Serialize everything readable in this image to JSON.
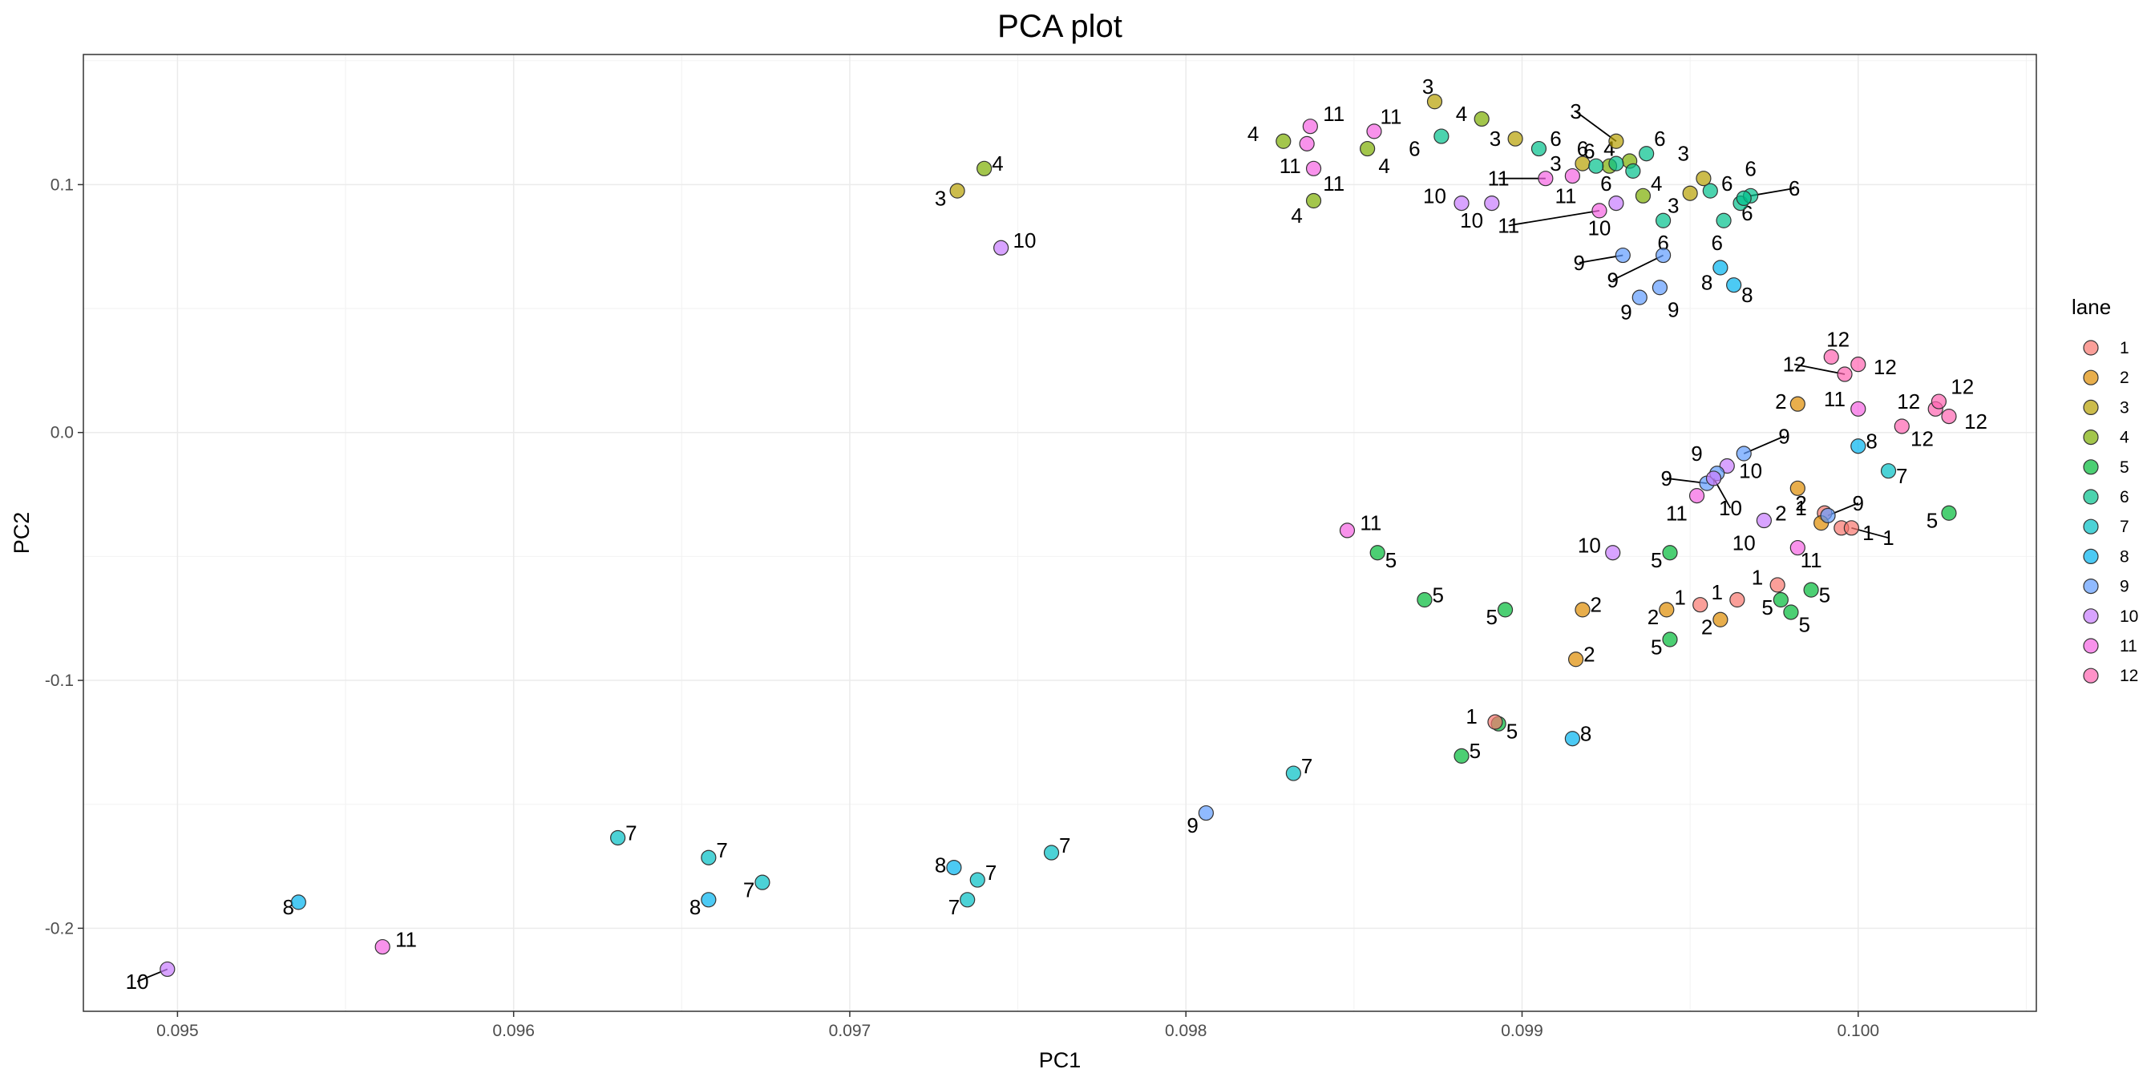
{
  "chart_data": {
    "type": "scatter",
    "title": "PCA plot",
    "xlabel": "PC1",
    "ylabel": "PC2",
    "xlim": [
      0.09472,
      0.10053
    ],
    "ylim": [
      -0.2335,
      0.1525
    ],
    "x_ticks": [
      0.095,
      0.096,
      0.097,
      0.098,
      0.099,
      0.1
    ],
    "x_tick_labels": [
      "0.095",
      "0.096",
      "0.097",
      "0.098",
      "0.099",
      "0.100"
    ],
    "y_ticks": [
      -0.2,
      -0.1,
      0.0,
      0.1
    ],
    "y_tick_labels": [
      "-0.2",
      "-0.1",
      "0.0",
      "0.1"
    ],
    "grid": true,
    "legend": {
      "title": "lane",
      "position": "right",
      "entries": [
        "1",
        "2",
        "3",
        "4",
        "5",
        "6",
        "7",
        "8",
        "9",
        "10",
        "11",
        "12"
      ]
    },
    "colors": {
      "1": "#F8766D",
      "2": "#DE8C00",
      "3": "#B79F00",
      "4": "#7CAE00",
      "5": "#00BA38",
      "6": "#00C08B",
      "7": "#00BFC4",
      "8": "#00B4F0",
      "9": "#619CFF",
      "10": "#C77CFF",
      "11": "#F564E3",
      "12": "#FF64B0"
    },
    "points": [
      {
        "x": 0.09497,
        "y": -0.2165,
        "lane": "10",
        "label": "10",
        "lx": 0.09488,
        "ly": -0.2215
      },
      {
        "x": 0.09536,
        "y": -0.1895,
        "lane": "8",
        "label": "8",
        "lx": 0.09533,
        "ly": -0.1915
      },
      {
        "x": 0.09561,
        "y": -0.2075,
        "lane": "11",
        "label": "11",
        "lx": 0.09568,
        "ly": -0.2045
      },
      {
        "x": 0.09631,
        "y": -0.1635,
        "lane": "7",
        "label": "7",
        "lx": 0.09635,
        "ly": -0.1615
      },
      {
        "x": 0.09658,
        "y": -0.1885,
        "lane": "8",
        "label": "8",
        "lx": 0.09654,
        "ly": -0.1915
      },
      {
        "x": 0.09658,
        "y": -0.1715,
        "lane": "7",
        "label": "7",
        "lx": 0.09662,
        "ly": -0.1685
      },
      {
        "x": 0.09674,
        "y": -0.1815,
        "lane": "7",
        "label": "7",
        "lx": 0.0967,
        "ly": -0.1845
      },
      {
        "x": 0.09731,
        "y": -0.1755,
        "lane": "8",
        "label": "8",
        "lx": 0.09727,
        "ly": -0.1745
      },
      {
        "x": 0.09735,
        "y": -0.1885,
        "lane": "7",
        "label": "7",
        "lx": 0.09731,
        "ly": -0.1915
      },
      {
        "x": 0.09738,
        "y": -0.1805,
        "lane": "7",
        "label": "7",
        "lx": 0.09742,
        "ly": -0.1775
      },
      {
        "x": 0.0976,
        "y": -0.1695,
        "lane": "7",
        "label": "7",
        "lx": 0.09764,
        "ly": -0.1665
      },
      {
        "x": 0.09806,
        "y": -0.1535,
        "lane": "9",
        "label": "9",
        "lx": 0.09802,
        "ly": -0.1585
      },
      {
        "x": 0.09832,
        "y": -0.1375,
        "lane": "7",
        "label": "7",
        "lx": 0.09836,
        "ly": -0.1345
      },
      {
        "x": 0.09882,
        "y": -0.1305,
        "lane": "5",
        "label": "5",
        "lx": 0.09886,
        "ly": -0.1285
      },
      {
        "x": 0.09893,
        "y": -0.1175,
        "lane": "5",
        "label": "5",
        "lx": 0.09897,
        "ly": -0.1205
      },
      {
        "x": 0.09892,
        "y": -0.1168,
        "lane": "1",
        "label": "1",
        "lx": 0.09885,
        "ly": -0.1145
      },
      {
        "x": 0.09915,
        "y": -0.1235,
        "lane": "8",
        "label": "8",
        "lx": 0.09919,
        "ly": -0.1215
      },
      {
        "x": 0.09916,
        "y": -0.0915,
        "lane": "2",
        "label": "2",
        "lx": 0.0992,
        "ly": -0.0895
      },
      {
        "x": 0.09918,
        "y": -0.0715,
        "lane": "2",
        "label": "2",
        "lx": 0.09922,
        "ly": -0.0695
      },
      {
        "x": 0.09895,
        "y": -0.0715,
        "lane": "5",
        "label": "5",
        "lx": 0.09891,
        "ly": -0.0745
      },
      {
        "x": 0.09871,
        "y": -0.0675,
        "lane": "5",
        "label": "5",
        "lx": 0.09875,
        "ly": -0.0655
      },
      {
        "x": 0.09857,
        "y": -0.0485,
        "lane": "5",
        "label": "5",
        "lx": 0.09861,
        "ly": -0.0515
      },
      {
        "x": 0.09848,
        "y": -0.0395,
        "lane": "11",
        "label": "11",
        "lx": 0.09855,
        "ly": -0.0365
      },
      {
        "x": 0.09927,
        "y": -0.0485,
        "lane": "10",
        "label": "10",
        "lx": 0.0992,
        "ly": -0.0455
      },
      {
        "x": 0.09944,
        "y": -0.0485,
        "lane": "5",
        "label": "5",
        "lx": 0.0994,
        "ly": -0.0515
      },
      {
        "x": 0.09943,
        "y": -0.0715,
        "lane": "2",
        "label": "2",
        "lx": 0.09939,
        "ly": -0.0745
      },
      {
        "x": 0.09944,
        "y": -0.0835,
        "lane": "5",
        "label": "5",
        "lx": 0.0994,
        "ly": -0.0865
      },
      {
        "x": 0.09953,
        "y": -0.0695,
        "lane": "1",
        "label": "1",
        "lx": 0.09947,
        "ly": -0.0665
      },
      {
        "x": 0.09959,
        "y": -0.0755,
        "lane": "2",
        "label": "2",
        "lx": 0.09955,
        "ly": -0.0785
      },
      {
        "x": 0.09964,
        "y": -0.0675,
        "lane": "1",
        "label": "1",
        "lx": 0.09958,
        "ly": -0.0645
      },
      {
        "x": 0.09976,
        "y": -0.0615,
        "lane": "1",
        "label": "1",
        "lx": 0.0997,
        "ly": -0.0585
      },
      {
        "x": 0.09977,
        "y": -0.0675,
        "lane": "5",
        "label": "5",
        "lx": 0.09973,
        "ly": -0.0705
      },
      {
        "x": 0.0998,
        "y": -0.0725,
        "lane": "5",
        "label": "5",
        "lx": 0.09984,
        "ly": -0.0775
      },
      {
        "x": 0.09986,
        "y": -0.0635,
        "lane": "5",
        "label": "5",
        "lx": 0.0999,
        "ly": -0.0655
      },
      {
        "x": 0.09982,
        "y": -0.0465,
        "lane": "11",
        "label": "11",
        "lx": 0.09986,
        "ly": -0.0515
      },
      {
        "x": 0.09982,
        "y": -0.0225,
        "lane": "2",
        "label": "2",
        "lx": 0.09977,
        "ly": -0.0325
      },
      {
        "x": 0.09972,
        "y": -0.0355,
        "lane": "10",
        "label": "10",
        "lx": 0.09966,
        "ly": -0.0445
      },
      {
        "x": 0.0999,
        "y": -0.0325,
        "lane": "1",
        "label": "1",
        "lx": 0.09983,
        "ly": -0.0305
      },
      {
        "x": 0.09989,
        "y": -0.0365,
        "lane": "2",
        "label": "2",
        "lx": 0.09983,
        "ly": -0.0285
      },
      {
        "x": 0.09991,
        "y": -0.0335,
        "lane": "9",
        "label": "9",
        "lx": 0.1,
        "ly": -0.0285
      },
      {
        "x": 0.09995,
        "y": -0.0385,
        "lane": "1",
        "label": "1",
        "lx": 0.10003,
        "ly": -0.0405
      },
      {
        "x": 0.09998,
        "y": -0.0385,
        "lane": "1",
        "label": "1",
        "lx": 0.10009,
        "ly": -0.0425
      },
      {
        "x": 0.10027,
        "y": -0.0325,
        "lane": "5",
        "label": "5",
        "lx": 0.10022,
        "ly": -0.0355
      },
      {
        "x": 0.10009,
        "y": -0.0155,
        "lane": "7",
        "label": "7",
        "lx": 0.10013,
        "ly": -0.0175
      },
      {
        "x": 0.1,
        "y": -0.0055,
        "lane": "8",
        "label": "8",
        "lx": 0.10004,
        "ly": -0.0035
      },
      {
        "x": 0.09966,
        "y": -0.0085,
        "lane": "9",
        "label": "9",
        "lx": 0.09978,
        "ly": -0.0015
      },
      {
        "x": 0.09961,
        "y": -0.0135,
        "lane": "10",
        "label": "10",
        "lx": 0.09968,
        "ly": -0.0155
      },
      {
        "x": 0.09958,
        "y": -0.0165,
        "lane": "9",
        "label": "9",
        "lx": 0.09952,
        "ly": -0.0085
      },
      {
        "x": 0.09955,
        "y": -0.0205,
        "lane": "9",
        "label": "9",
        "lx": 0.09943,
        "ly": -0.0185
      },
      {
        "x": 0.09957,
        "y": -0.0185,
        "lane": "10",
        "label": "10",
        "lx": 0.09962,
        "ly": -0.0305
      },
      {
        "x": 0.09952,
        "y": -0.0255,
        "lane": "11",
        "label": "11",
        "lx": 0.09946,
        "ly": -0.0325
      },
      {
        "x": 0.09982,
        "y": 0.0115,
        "lane": "2",
        "label": "2",
        "lx": 0.09977,
        "ly": 0.0125
      },
      {
        "x": 0.1,
        "y": 0.0095,
        "lane": "11",
        "label": "11",
        "lx": 0.09993,
        "ly": 0.0135
      },
      {
        "x": 0.09992,
        "y": 0.0305,
        "lane": "12",
        "label": "12",
        "lx": 0.09994,
        "ly": 0.0375
      },
      {
        "x": 0.09996,
        "y": 0.0235,
        "lane": "12",
        "label": "12",
        "lx": 0.09981,
        "ly": 0.0275
      },
      {
        "x": 0.1,
        "y": 0.0275,
        "lane": "12",
        "label": "12",
        "lx": 0.10008,
        "ly": 0.0265
      },
      {
        "x": 0.10013,
        "y": 0.0025,
        "lane": "12",
        "label": "12",
        "lx": 0.10019,
        "ly": -0.0025
      },
      {
        "x": 0.10023,
        "y": 0.0095,
        "lane": "12",
        "label": "12",
        "lx": 0.10015,
        "ly": 0.0125
      },
      {
        "x": 0.10024,
        "y": 0.0125,
        "lane": "12",
        "label": "12",
        "lx": 0.10031,
        "ly": 0.0185
      },
      {
        "x": 0.10027,
        "y": 0.0065,
        "lane": "12",
        "label": "12",
        "lx": 0.10035,
        "ly": 0.0045
      },
      {
        "x": 0.09935,
        "y": 0.0545,
        "lane": "9",
        "label": "9",
        "lx": 0.09931,
        "ly": 0.0485
      },
      {
        "x": 0.09941,
        "y": 0.0585,
        "lane": "9",
        "label": "9",
        "lx": 0.09945,
        "ly": 0.0495
      },
      {
        "x": 0.0993,
        "y": 0.0715,
        "lane": "9",
        "label": "9",
        "lx": 0.09917,
        "ly": 0.0685
      },
      {
        "x": 0.09942,
        "y": 0.0715,
        "lane": "9",
        "label": "9",
        "lx": 0.09927,
        "ly": 0.0615
      },
      {
        "x": 0.09959,
        "y": 0.0665,
        "lane": "8",
        "label": "8",
        "lx": 0.09955,
        "ly": 0.0605
      },
      {
        "x": 0.09963,
        "y": 0.0595,
        "lane": "8",
        "label": "8",
        "lx": 0.09967,
        "ly": 0.0555
      },
      {
        "x": 0.0996,
        "y": 0.0855,
        "lane": "6",
        "label": "6",
        "lx": 0.09958,
        "ly": 0.0765
      },
      {
        "x": 0.09942,
        "y": 0.0855,
        "lane": "6",
        "label": "6",
        "lx": 0.09942,
        "ly": 0.0765
      },
      {
        "x": 0.09965,
        "y": 0.0925,
        "lane": "6",
        "label": "6",
        "lx": 0.09967,
        "ly": 0.0885
      },
      {
        "x": 0.09968,
        "y": 0.0955,
        "lane": "6",
        "label": "6",
        "lx": 0.09981,
        "ly": 0.0985
      },
      {
        "x": 0.09966,
        "y": 0.0945,
        "lane": "6",
        "label": "6",
        "lx": 0.09968,
        "ly": 0.1065
      },
      {
        "x": 0.09956,
        "y": 0.0975,
        "lane": "6",
        "label": "6",
        "lx": 0.09961,
        "ly": 0.1005
      },
      {
        "x": 0.09954,
        "y": 0.1025,
        "lane": "3",
        "label": "3",
        "lx": 0.09948,
        "ly": 0.1125
      },
      {
        "x": 0.0995,
        "y": 0.0965,
        "lane": "3",
        "label": "3",
        "lx": 0.09945,
        "ly": 0.0915
      },
      {
        "x": 0.09928,
        "y": 0.1175,
        "lane": "3",
        "label": "3",
        "lx": 0.09916,
        "ly": 0.1295
      },
      {
        "x": 0.09937,
        "y": 0.1125,
        "lane": "6",
        "label": "6",
        "lx": 0.09941,
        "ly": 0.1185
      },
      {
        "x": 0.09932,
        "y": 0.1095,
        "lane": "4",
        "label": "4",
        "lx": 0.09926,
        "ly": 0.1145
      },
      {
        "x": 0.09926,
        "y": 0.1075,
        "lane": "4",
        "label": "4",
        "lx": 0.09926,
        "ly": 0.1145
      },
      {
        "x": 0.09936,
        "y": 0.0955,
        "lane": "4",
        "label": "4",
        "lx": 0.0994,
        "ly": 0.1005
      },
      {
        "x": 0.09928,
        "y": 0.1085,
        "lane": "6",
        "label": "6",
        "lx": 0.0992,
        "ly": 0.1135
      },
      {
        "x": 0.09933,
        "y": 0.1055,
        "lane": "6",
        "label": "6",
        "lx": 0.09925,
        "ly": 0.1005
      },
      {
        "x": 0.09918,
        "y": 0.1085,
        "lane": "3",
        "label": "3",
        "lx": 0.0991,
        "ly": 0.1085
      },
      {
        "x": 0.09922,
        "y": 0.1075,
        "lane": "6",
        "label": "6",
        "lx": 0.09918,
        "ly": 0.1145
      },
      {
        "x": 0.09928,
        "y": 0.0925,
        "lane": "10",
        "label": "10",
        "lx": 0.09923,
        "ly": 0.0825
      },
      {
        "x": 0.09923,
        "y": 0.0895,
        "lane": "11",
        "label": "11",
        "lx": 0.09896,
        "ly": 0.0835
      },
      {
        "x": 0.09915,
        "y": 0.1035,
        "lane": "11",
        "label": "11",
        "lx": 0.09913,
        "ly": 0.0955
      },
      {
        "x": 0.09907,
        "y": 0.1025,
        "lane": "11",
        "label": "11",
        "lx": 0.09893,
        "ly": 0.1025
      },
      {
        "x": 0.09905,
        "y": 0.1145,
        "lane": "6",
        "label": "6",
        "lx": 0.0991,
        "ly": 0.1185
      },
      {
        "x": 0.09898,
        "y": 0.1185,
        "lane": "3",
        "label": "3",
        "lx": 0.09892,
        "ly": 0.1185
      },
      {
        "x": 0.09874,
        "y": 0.1335,
        "lane": "3",
        "label": "3",
        "lx": 0.09872,
        "ly": 0.1395
      },
      {
        "x": 0.09888,
        "y": 0.1265,
        "lane": "4",
        "label": "4",
        "lx": 0.09882,
        "ly": 0.1285
      },
      {
        "x": 0.09876,
        "y": 0.1195,
        "lane": "6",
        "label": "6",
        "lx": 0.09868,
        "ly": 0.1145
      },
      {
        "x": 0.09891,
        "y": 0.0925,
        "lane": "10",
        "label": "10",
        "lx": 0.09885,
        "ly": 0.0855
      },
      {
        "x": 0.09882,
        "y": 0.0925,
        "lane": "10",
        "label": "10",
        "lx": 0.09874,
        "ly": 0.0955
      },
      {
        "x": 0.09856,
        "y": 0.1215,
        "lane": "11",
        "label": "11",
        "lx": 0.09861,
        "ly": 0.1275
      },
      {
        "x": 0.09854,
        "y": 0.1145,
        "lane": "4",
        "label": "4",
        "lx": 0.09859,
        "ly": 0.1075
      },
      {
        "x": 0.09838,
        "y": 0.1065,
        "lane": "11",
        "label": "11",
        "lx": 0.09844,
        "ly": 0.1005
      },
      {
        "x": 0.09838,
        "y": 0.0935,
        "lane": "4",
        "label": "4",
        "lx": 0.09833,
        "ly": 0.0875
      },
      {
        "x": 0.09836,
        "y": 0.1165,
        "lane": "11",
        "label": "11",
        "lx": 0.09831,
        "ly": 0.1075
      },
      {
        "x": 0.09837,
        "y": 0.1235,
        "lane": "11",
        "label": "11",
        "lx": 0.09844,
        "ly": 0.1285
      },
      {
        "x": 0.09829,
        "y": 0.1175,
        "lane": "4",
        "label": "4",
        "lx": 0.0982,
        "ly": 0.1205
      },
      {
        "x": 0.09732,
        "y": 0.0975,
        "lane": "3",
        "label": "3",
        "lx": 0.09727,
        "ly": 0.0945
      },
      {
        "x": 0.0974,
        "y": 0.1065,
        "lane": "4",
        "label": "4",
        "lx": 0.09744,
        "ly": 0.1085
      },
      {
        "x": 0.09745,
        "y": 0.0745,
        "lane": "10",
        "label": "10",
        "lx": 0.09752,
        "ly": 0.0775
      }
    ]
  }
}
